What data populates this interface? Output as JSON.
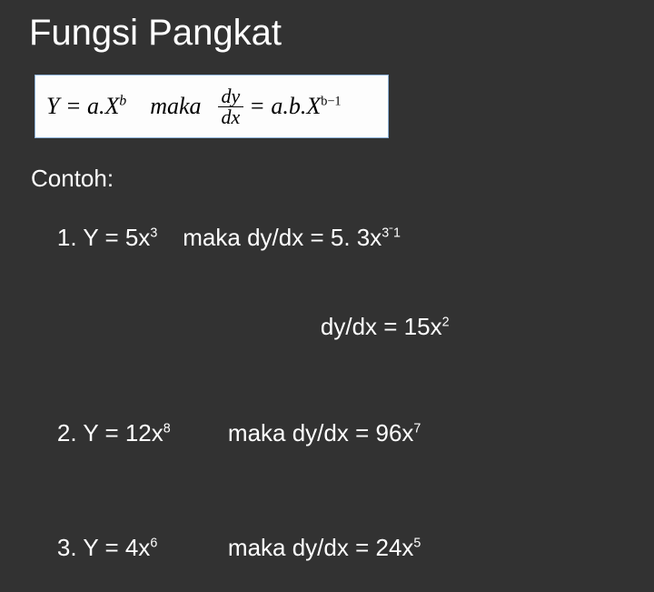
{
  "background_color": "#323232",
  "text_color": "#ffffff",
  "title": "Fungsi Pangkat",
  "title_fontsize": 40,
  "formula_box": {
    "background": "#fdfdfd",
    "border_color": "#8fb3d9",
    "font_family": "Times New Roman",
    "font_style": "italic",
    "font_size": 26,
    "lhs_text": "Y = a.X",
    "lhs_exp": "b",
    "maka": "maka",
    "frac_num": "dy",
    "frac_den": "dx",
    "rhs_eq": "= a.b.X",
    "rhs_exp": "b−1"
  },
  "body_fontsize": 26,
  "contoh_label": "Contoh:",
  "ex1": {
    "lhs": "1. Y = 5x",
    "lhs_exp": "3",
    "maka": "maka",
    "line1_rhs": "dy/dx = 5. 3x",
    "line1_exp": "3ˉ1",
    "line2": "dy/dx = 15x",
    "line2_exp": "2"
  },
  "ex2": {
    "lhs": "2. Y = 12x",
    "lhs_exp": "8",
    "maka": "maka",
    "rhs": " dy/dx = 96x",
    "rhs_exp": "7"
  },
  "ex3": {
    "lhs": "3. Y = 4x",
    "lhs_exp": "6",
    "maka": "maka",
    "rhs": " dy/dx = 24x",
    "rhs_exp": "5"
  }
}
